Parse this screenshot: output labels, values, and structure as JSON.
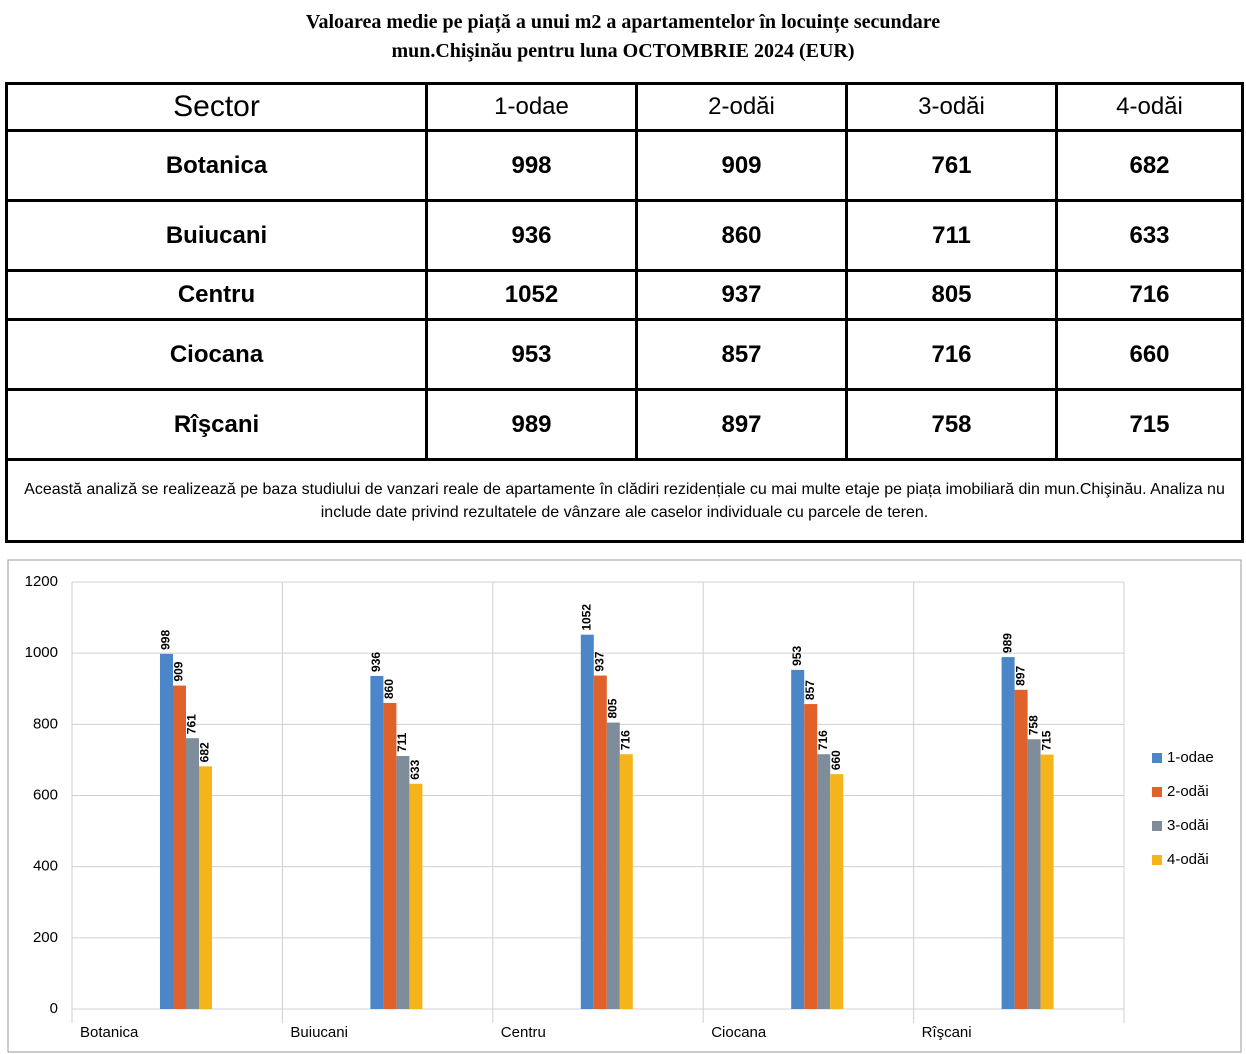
{
  "header": {
    "title_line1": "Valoarea medie pe piață a unui m2 a apartamentelor în locuințe secundare",
    "title_line2": "mun.Chişinău pentru luna OCTOMBRIE  2024 (EUR)"
  },
  "table": {
    "columns": [
      "Sector",
      "1-odae",
      "2-odăi",
      "3-odăi",
      "4-odăi"
    ],
    "rows": [
      [
        "Botanica",
        998,
        909,
        761,
        682
      ],
      [
        "Buiucani",
        936,
        860,
        711,
        633
      ],
      [
        "Centru",
        1052,
        937,
        805,
        716
      ],
      [
        "Ciocana",
        953,
        857,
        716,
        660
      ],
      [
        "Rîşcani",
        989,
        897,
        758,
        715
      ]
    ],
    "note": "Această analiză se realizează pe baza studiului de vanzari reale de apartamente în clădiri rezidențiale cu mai multe etaje pe piața imobiliară      din mun.Chişinău. Analiza nu include date privind rezultatele de vânzare ale caselor individuale cu parcele de teren."
  },
  "chart_data": {
    "type": "bar",
    "categories": [
      "Botanica",
      "Buiucani",
      "Centru",
      "Ciocana",
      "Rîşcani"
    ],
    "series": [
      {
        "name": "1-odae",
        "color": "#4a86c8",
        "values": [
          998,
          936,
          1052,
          953,
          989
        ]
      },
      {
        "name": "2-odăi",
        "color": "#e0622a",
        "values": [
          909,
          860,
          937,
          857,
          897
        ]
      },
      {
        "name": "3-odăi",
        "color": "#7f8c99",
        "values": [
          761,
          711,
          805,
          716,
          758
        ]
      },
      {
        "name": "4-odăi",
        "color": "#f5b51a",
        "values": [
          682,
          633,
          716,
          660,
          715
        ]
      }
    ],
    "ylim": [
      0,
      1200
    ],
    "yticks": [
      0,
      200,
      400,
      600,
      800,
      1000,
      1200
    ],
    "grid": true,
    "legend": "right"
  }
}
